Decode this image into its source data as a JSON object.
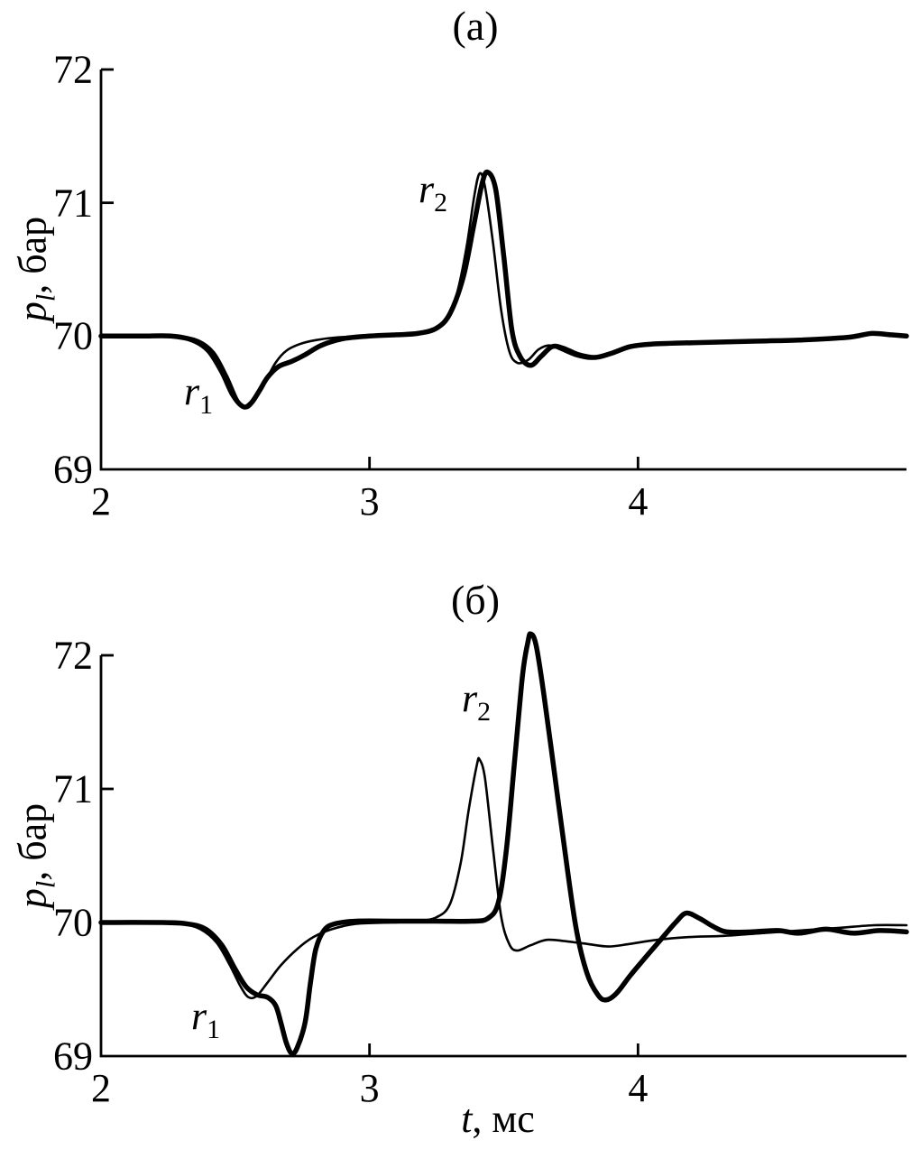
{
  "figure": {
    "background": "#ffffff",
    "line_color": "#000000",
    "panels": [
      {
        "title": "(а)",
        "ylabel": {
          "var": "p",
          "sub": "l",
          "rest": ", бар"
        },
        "annotations": [
          {
            "var": "r",
            "sub": "1"
          },
          {
            "var": "r",
            "sub": "2"
          }
        ]
      },
      {
        "title": "(б)",
        "ylabel": {
          "var": "p",
          "sub": "l",
          "rest": ", бар"
        },
        "annotations": [
          {
            "var": "r",
            "sub": "1"
          },
          {
            "var": "r",
            "sub": "2"
          }
        ]
      }
    ],
    "xlabel": {
      "var": "t",
      "rest": ", мс"
    }
  },
  "chart_data": [
    {
      "type": "line",
      "title": "(а)",
      "xlabel": "t, мс",
      "ylabel": "p_l, бар",
      "xlim": [
        2,
        5
      ],
      "ylim": [
        69,
        72
      ],
      "xticks": [
        2,
        3,
        4
      ],
      "yticks": [
        72,
        71,
        70,
        69
      ],
      "grid": false,
      "legend": "none",
      "annotations": [
        {
          "text": "r1",
          "x": 2.37,
          "y": 69.55
        },
        {
          "text": "r2",
          "x": 3.22,
          "y": 71.05
        }
      ],
      "series": [
        {
          "name": "thin line",
          "style": "thin",
          "points": [
            [
              2.0,
              70.0
            ],
            [
              2.15,
              70.0
            ],
            [
              2.28,
              70.0
            ],
            [
              2.36,
              69.97
            ],
            [
              2.42,
              69.88
            ],
            [
              2.47,
              69.7
            ],
            [
              2.51,
              69.52
            ],
            [
              2.54,
              69.46
            ],
            [
              2.57,
              69.51
            ],
            [
              2.61,
              69.65
            ],
            [
              2.65,
              69.8
            ],
            [
              2.69,
              69.89
            ],
            [
              2.74,
              69.94
            ],
            [
              2.8,
              69.97
            ],
            [
              2.88,
              69.99
            ],
            [
              3.0,
              70.0
            ],
            [
              3.12,
              70.01
            ],
            [
              3.2,
              70.03
            ],
            [
              3.27,
              70.09
            ],
            [
              3.32,
              70.28
            ],
            [
              3.36,
              70.65
            ],
            [
              3.39,
              71.05
            ],
            [
              3.41,
              71.22
            ],
            [
              3.43,
              71.12
            ],
            [
              3.46,
              70.7
            ],
            [
              3.49,
              70.2
            ],
            [
              3.52,
              69.89
            ],
            [
              3.55,
              69.8
            ],
            [
              3.59,
              69.82
            ],
            [
              3.63,
              69.9
            ],
            [
              3.67,
              69.93
            ],
            [
              3.71,
              69.9
            ],
            [
              3.77,
              69.85
            ],
            [
              3.83,
              69.83
            ],
            [
              3.89,
              69.87
            ],
            [
              3.96,
              69.92
            ],
            [
              4.05,
              69.94
            ],
            [
              4.2,
              69.95
            ],
            [
              4.4,
              69.96
            ],
            [
              4.6,
              69.97
            ],
            [
              4.75,
              69.98
            ],
            [
              4.85,
              70.01
            ],
            [
              4.93,
              70.01
            ],
            [
              5.0,
              70.0
            ]
          ]
        },
        {
          "name": "thick line",
          "style": "thick",
          "points": [
            [
              2.0,
              70.0
            ],
            [
              2.15,
              70.0
            ],
            [
              2.26,
              70.0
            ],
            [
              2.34,
              69.97
            ],
            [
              2.4,
              69.89
            ],
            [
              2.45,
              69.73
            ],
            [
              2.49,
              69.56
            ],
            [
              2.53,
              69.47
            ],
            [
              2.56,
              69.5
            ],
            [
              2.59,
              69.59
            ],
            [
              2.62,
              69.69
            ],
            [
              2.66,
              69.77
            ],
            [
              2.71,
              69.81
            ],
            [
              2.76,
              69.86
            ],
            [
              2.82,
              69.93
            ],
            [
              2.9,
              69.98
            ],
            [
              3.0,
              70.0
            ],
            [
              3.1,
              70.01
            ],
            [
              3.18,
              70.02
            ],
            [
              3.25,
              70.06
            ],
            [
              3.3,
              70.17
            ],
            [
              3.35,
              70.45
            ],
            [
              3.39,
              70.85
            ],
            [
              3.42,
              71.15
            ],
            [
              3.44,
              71.23
            ],
            [
              3.47,
              71.1
            ],
            [
              3.5,
              70.6
            ],
            [
              3.53,
              70.05
            ],
            [
              3.56,
              69.85
            ],
            [
              3.6,
              69.78
            ],
            [
              3.64,
              69.85
            ],
            [
              3.68,
              69.92
            ],
            [
              3.72,
              69.91
            ],
            [
              3.78,
              69.86
            ],
            [
              3.84,
              69.84
            ],
            [
              3.9,
              69.87
            ],
            [
              3.97,
              69.92
            ],
            [
              4.05,
              69.94
            ],
            [
              4.2,
              69.95
            ],
            [
              4.4,
              69.96
            ],
            [
              4.6,
              69.97
            ],
            [
              4.78,
              69.99
            ],
            [
              4.87,
              70.02
            ],
            [
              4.94,
              70.01
            ],
            [
              5.0,
              70.0
            ]
          ]
        }
      ]
    },
    {
      "type": "line",
      "title": "(б)",
      "xlabel": "t, мс",
      "ylabel": "p_l, бар",
      "xlim": [
        2,
        5
      ],
      "ylim": [
        69,
        72
      ],
      "xticks": [
        2,
        3,
        4
      ],
      "yticks": [
        72,
        71,
        70,
        69
      ],
      "grid": false,
      "legend": "none",
      "annotations": [
        {
          "text": "r1",
          "x": 2.38,
          "y": 69.3
        },
        {
          "text": "r2",
          "x": 3.4,
          "y": 71.65
        }
      ],
      "series": [
        {
          "name": "thin line",
          "style": "thin",
          "points": [
            [
              2.0,
              70.0
            ],
            [
              2.2,
              70.0
            ],
            [
              2.3,
              69.99
            ],
            [
              2.37,
              69.95
            ],
            [
              2.43,
              69.85
            ],
            [
              2.48,
              69.68
            ],
            [
              2.52,
              69.52
            ],
            [
              2.55,
              69.44
            ],
            [
              2.58,
              69.45
            ],
            [
              2.62,
              69.55
            ],
            [
              2.67,
              69.68
            ],
            [
              2.73,
              69.8
            ],
            [
              2.79,
              69.89
            ],
            [
              2.86,
              69.95
            ],
            [
              2.95,
              69.99
            ],
            [
              3.08,
              70.0
            ],
            [
              3.18,
              70.01
            ],
            [
              3.25,
              70.04
            ],
            [
              3.3,
              70.14
            ],
            [
              3.34,
              70.45
            ],
            [
              3.37,
              70.85
            ],
            [
              3.4,
              71.18
            ],
            [
              3.41,
              71.22
            ],
            [
              3.43,
              71.08
            ],
            [
              3.46,
              70.55
            ],
            [
              3.49,
              70.05
            ],
            [
              3.52,
              69.84
            ],
            [
              3.55,
              69.79
            ],
            [
              3.6,
              69.83
            ],
            [
              3.66,
              69.87
            ],
            [
              3.73,
              69.86
            ],
            [
              3.81,
              69.84
            ],
            [
              3.89,
              69.82
            ],
            [
              3.97,
              69.84
            ],
            [
              4.07,
              69.87
            ],
            [
              4.18,
              69.89
            ],
            [
              4.32,
              69.9
            ],
            [
              4.46,
              69.92
            ],
            [
              4.6,
              69.94
            ],
            [
              4.75,
              69.96
            ],
            [
              4.88,
              69.98
            ],
            [
              5.0,
              69.98
            ]
          ]
        },
        {
          "name": "thick line",
          "style": "thick",
          "points": [
            [
              2.0,
              70.0
            ],
            [
              2.22,
              70.0
            ],
            [
              2.32,
              69.99
            ],
            [
              2.39,
              69.95
            ],
            [
              2.45,
              69.83
            ],
            [
              2.5,
              69.65
            ],
            [
              2.54,
              69.52
            ],
            [
              2.58,
              69.46
            ],
            [
              2.62,
              69.44
            ],
            [
              2.65,
              69.38
            ],
            [
              2.67,
              69.25
            ],
            [
              2.69,
              69.1
            ],
            [
              2.71,
              69.02
            ],
            [
              2.73,
              69.06
            ],
            [
              2.76,
              69.25
            ],
            [
              2.78,
              69.55
            ],
            [
              2.8,
              69.8
            ],
            [
              2.83,
              69.94
            ],
            [
              2.87,
              69.99
            ],
            [
              2.95,
              70.01
            ],
            [
              3.1,
              70.01
            ],
            [
              3.25,
              70.01
            ],
            [
              3.38,
              70.01
            ],
            [
              3.44,
              70.03
            ],
            [
              3.48,
              70.15
            ],
            [
              3.51,
              70.55
            ],
            [
              3.54,
              71.2
            ],
            [
              3.57,
              71.85
            ],
            [
              3.59,
              72.1
            ],
            [
              3.6,
              72.16
            ],
            [
              3.62,
              72.08
            ],
            [
              3.65,
              71.7
            ],
            [
              3.69,
              71.1
            ],
            [
              3.73,
              70.5
            ],
            [
              3.77,
              69.95
            ],
            [
              3.81,
              69.62
            ],
            [
              3.85,
              69.46
            ],
            [
              3.88,
              69.42
            ],
            [
              3.92,
              69.47
            ],
            [
              3.97,
              69.6
            ],
            [
              4.02,
              69.72
            ],
            [
              4.08,
              69.86
            ],
            [
              4.14,
              70.0
            ],
            [
              4.18,
              70.07
            ],
            [
              4.23,
              70.03
            ],
            [
              4.28,
              69.97
            ],
            [
              4.33,
              69.93
            ],
            [
              4.42,
              69.93
            ],
            [
              4.52,
              69.94
            ],
            [
              4.6,
              69.92
            ],
            [
              4.7,
              69.95
            ],
            [
              4.8,
              69.92
            ],
            [
              4.9,
              69.94
            ],
            [
              5.0,
              69.93
            ]
          ]
        }
      ]
    }
  ]
}
